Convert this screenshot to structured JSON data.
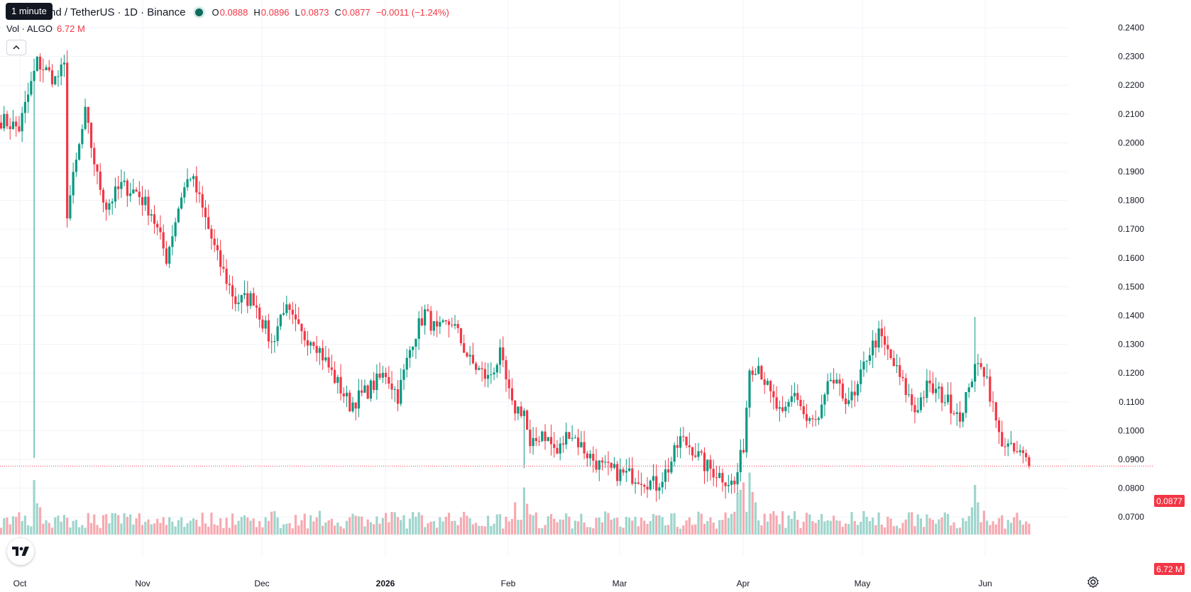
{
  "header": {
    "tooltip": "1 minute",
    "symbol_title": "nd / TetherUS · 1D · Binance",
    "open_label": "O",
    "open": "0.0888",
    "high_label": "H",
    "high": "0.0896",
    "low_label": "L",
    "low": "0.0873",
    "close_label": "C",
    "close": "0.0877",
    "change": "−0.0011 (−1.24%)"
  },
  "volume_legend": {
    "label": "Vol · ALGO",
    "value": "6.72 M"
  },
  "colors": {
    "up": "#089981",
    "down": "#f23645",
    "up_vol": "#9fd5cc",
    "down_vol": "#f7a9b0",
    "grid": "#f0f3fa"
  },
  "price_badge": "0.0877",
  "volume_badge": "6.72 M",
  "chart_data": {
    "type": "candlestick",
    "x_axis": {
      "ticks": [
        "Oct",
        "Nov",
        "Dec",
        "2026",
        "Feb",
        "Mar",
        "Apr",
        "May",
        "Jun"
      ]
    },
    "y_axis": {
      "ticks": [
        "0.2400",
        "0.2300",
        "0.2200",
        "0.2100",
        "0.2000",
        "0.1900",
        "0.1800",
        "0.1700",
        "0.1600",
        "0.1500",
        "0.1400",
        "0.1300",
        "0.1200",
        "0.1100",
        "0.1000",
        "0.0900",
        "0.0800",
        "0.0700"
      ],
      "range": [
        0.065,
        0.242
      ]
    },
    "last_price": 0.0877,
    "anchors": [
      [
        0,
        0.208
      ],
      [
        6,
        0.205
      ],
      [
        12,
        0.228
      ],
      [
        18,
        0.222
      ],
      [
        21,
        0.226
      ],
      [
        22,
        0.176
      ],
      [
        28,
        0.21
      ],
      [
        32,
        0.188
      ],
      [
        35,
        0.178
      ],
      [
        40,
        0.185
      ],
      [
        45,
        0.183
      ],
      [
        50,
        0.176
      ],
      [
        55,
        0.16
      ],
      [
        60,
        0.182
      ],
      [
        63,
        0.189
      ],
      [
        66,
        0.18
      ],
      [
        72,
        0.16
      ],
      [
        78,
        0.145
      ],
      [
        84,
        0.146
      ],
      [
        90,
        0.13
      ],
      [
        94,
        0.143
      ],
      [
        100,
        0.133
      ],
      [
        104,
        0.132
      ],
      [
        110,
        0.12
      ],
      [
        116,
        0.109
      ],
      [
        122,
        0.114
      ],
      [
        128,
        0.12
      ],
      [
        132,
        0.112
      ],
      [
        137,
        0.132
      ],
      [
        141,
        0.141
      ],
      [
        145,
        0.134
      ],
      [
        150,
        0.138
      ],
      [
        156,
        0.124
      ],
      [
        162,
        0.118
      ],
      [
        166,
        0.126
      ],
      [
        170,
        0.108
      ],
      [
        174,
        0.107
      ],
      [
        176,
        0.093
      ],
      [
        180,
        0.1
      ],
      [
        185,
        0.092
      ],
      [
        189,
        0.1
      ],
      [
        195,
        0.092
      ],
      [
        200,
        0.087
      ],
      [
        206,
        0.085
      ],
      [
        212,
        0.084
      ],
      [
        218,
        0.081
      ],
      [
        222,
        0.087
      ],
      [
        226,
        0.097
      ],
      [
        230,
        0.094
      ],
      [
        234,
        0.088
      ],
      [
        240,
        0.084
      ],
      [
        244,
        0.081
      ],
      [
        247,
        0.095
      ],
      [
        249,
        0.122
      ],
      [
        252,
        0.123
      ],
      [
        256,
        0.112
      ],
      [
        260,
        0.104
      ],
      [
        264,
        0.114
      ],
      [
        268,
        0.103
      ],
      [
        272,
        0.103
      ],
      [
        276,
        0.118
      ],
      [
        280,
        0.112
      ],
      [
        284,
        0.111
      ],
      [
        288,
        0.126
      ],
      [
        292,
        0.133
      ],
      [
        296,
        0.125
      ],
      [
        300,
        0.116
      ],
      [
        304,
        0.107
      ],
      [
        308,
        0.115
      ],
      [
        312,
        0.113
      ],
      [
        316,
        0.109
      ],
      [
        320,
        0.105
      ],
      [
        322,
        0.117
      ],
      [
        326,
        0.124
      ],
      [
        328,
        0.118
      ],
      [
        332,
        0.098
      ],
      [
        336,
        0.093
      ],
      [
        340,
        0.091
      ],
      [
        342,
        0.0877
      ]
    ],
    "volume_spikes": [
      [
        11,
        11.0
      ],
      [
        12,
        6.3
      ],
      [
        13,
        5.5
      ],
      [
        171,
        6.5
      ],
      [
        174,
        9.5
      ],
      [
        175,
        6.2
      ],
      [
        245,
        8.3
      ],
      [
        246,
        9.0
      ],
      [
        247,
        10.5
      ],
      [
        249,
        12.5
      ],
      [
        250,
        8.6
      ],
      [
        251,
        6.5
      ],
      [
        323,
        5.5
      ],
      [
        324,
        10.0
      ],
      [
        325,
        6.5
      ],
      [
        340,
        2.0
      ]
    ]
  }
}
